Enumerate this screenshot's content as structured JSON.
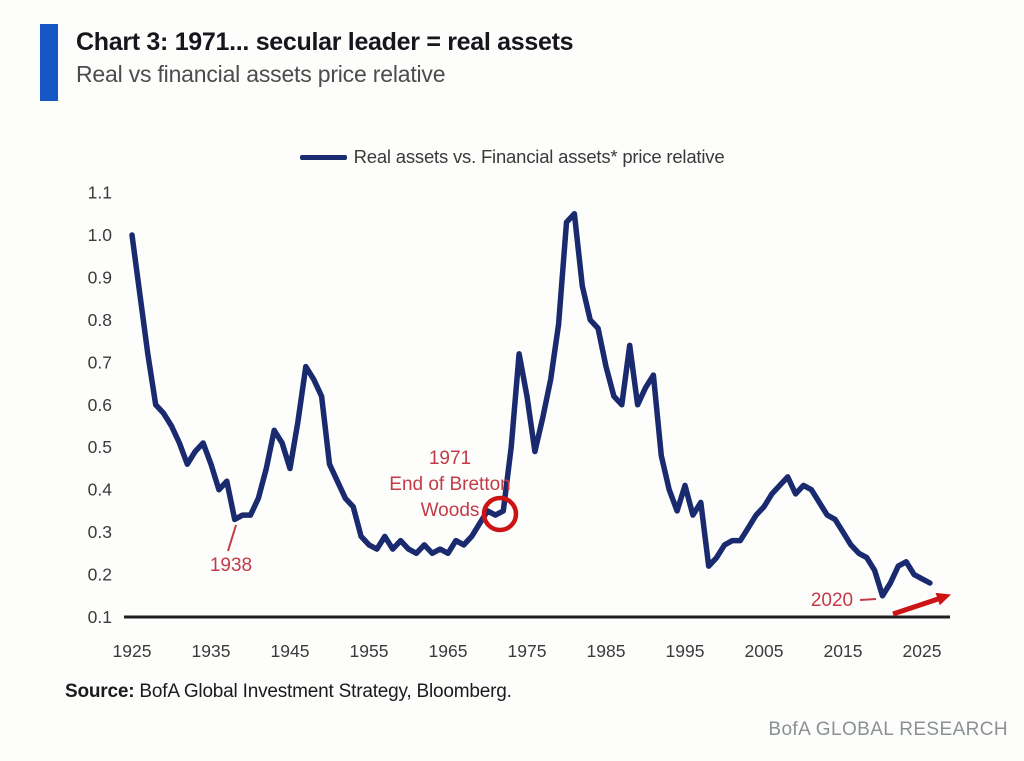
{
  "header": {
    "title": "Chart 3: 1971... secular leader = real assets",
    "subtitle": "Real vs financial assets price relative"
  },
  "legend": {
    "label": "Real assets vs. Financial assets* price relative"
  },
  "chart_data": {
    "type": "line",
    "title": "Chart 3: 1971... secular leader = real assets",
    "subtitle": "Real vs financial assets price relative",
    "xlabel": "",
    "ylabel": "",
    "xlim": [
      1925,
      2027
    ],
    "ylim": [
      0.1,
      1.1
    ],
    "grid": false,
    "legend_position": "top-center",
    "x_ticks": [
      1925,
      1935,
      1945,
      1955,
      1965,
      1975,
      1985,
      1995,
      2005,
      2015,
      2025
    ],
    "y_ticks": [
      1.1,
      1.0,
      0.9,
      0.8,
      0.7,
      0.6,
      0.5,
      0.4,
      0.3,
      0.2,
      0.1
    ],
    "line_color": "#1a2a6e",
    "series": [
      {
        "name": "Real assets vs. Financial assets* price relative",
        "x": [
          1925,
          1926,
          1927,
          1928,
          1929,
          1930,
          1931,
          1932,
          1933,
          1934,
          1935,
          1936,
          1937,
          1938,
          1939,
          1940,
          1941,
          1942,
          1943,
          1944,
          1945,
          1946,
          1947,
          1948,
          1949,
          1950,
          1951,
          1952,
          1953,
          1954,
          1955,
          1956,
          1957,
          1958,
          1959,
          1960,
          1961,
          1962,
          1963,
          1964,
          1965,
          1966,
          1967,
          1968,
          1969,
          1970,
          1971,
          1972,
          1973,
          1974,
          1975,
          1976,
          1977,
          1978,
          1979,
          1980,
          1981,
          1982,
          1983,
          1984,
          1985,
          1986,
          1987,
          1988,
          1989,
          1990,
          1991,
          1992,
          1993,
          1994,
          1995,
          1996,
          1997,
          1998,
          1999,
          2000,
          2001,
          2002,
          2003,
          2004,
          2005,
          2006,
          2007,
          2008,
          2009,
          2010,
          2011,
          2012,
          2013,
          2014,
          2015,
          2016,
          2017,
          2018,
          2019,
          2020,
          2021,
          2022,
          2023,
          2024,
          2025,
          2026
        ],
        "values": [
          1.0,
          0.86,
          0.72,
          0.6,
          0.58,
          0.55,
          0.51,
          0.46,
          0.49,
          0.51,
          0.46,
          0.4,
          0.42,
          0.33,
          0.34,
          0.34,
          0.38,
          0.45,
          0.54,
          0.51,
          0.45,
          0.56,
          0.69,
          0.66,
          0.62,
          0.46,
          0.42,
          0.38,
          0.36,
          0.29,
          0.27,
          0.26,
          0.29,
          0.26,
          0.28,
          0.26,
          0.25,
          0.27,
          0.25,
          0.26,
          0.25,
          0.28,
          0.27,
          0.29,
          0.32,
          0.35,
          0.34,
          0.35,
          0.5,
          0.72,
          0.62,
          0.49,
          0.57,
          0.66,
          0.79,
          1.03,
          1.05,
          0.88,
          0.8,
          0.78,
          0.69,
          0.62,
          0.6,
          0.74,
          0.6,
          0.64,
          0.67,
          0.48,
          0.4,
          0.35,
          0.41,
          0.34,
          0.37,
          0.22,
          0.24,
          0.27,
          0.28,
          0.28,
          0.31,
          0.34,
          0.36,
          0.39,
          0.41,
          0.43,
          0.39,
          0.41,
          0.4,
          0.37,
          0.34,
          0.33,
          0.3,
          0.27,
          0.25,
          0.24,
          0.21,
          0.15,
          0.18,
          0.22,
          0.23,
          0.2,
          0.19,
          0.18
        ]
      }
    ],
    "annotations": [
      {
        "text": "1938",
        "year": 1938,
        "value": 0.33
      },
      {
        "text": "1971 End of Bretton Woods",
        "lines": [
          "1971",
          "End of Bretton",
          "Woods"
        ],
        "year": 1971,
        "value": 0.34,
        "marker": "red-circle"
      },
      {
        "text": "2020",
        "year": 2020,
        "value": 0.15,
        "marker": "red-up-right-arrow"
      }
    ]
  },
  "footer": {
    "source_label": "Source:",
    "source_text": " BofA Global Investment Strategy, Bloomberg.",
    "brand": "BofA GLOBAL RESEARCH"
  },
  "colors": {
    "accent_bar_blue": "#1757c5",
    "line_navy": "#1a2a6e",
    "annotation_red": "#c23b47",
    "marker_red": "#cc1414",
    "axis_text": "#3b3b3b"
  }
}
